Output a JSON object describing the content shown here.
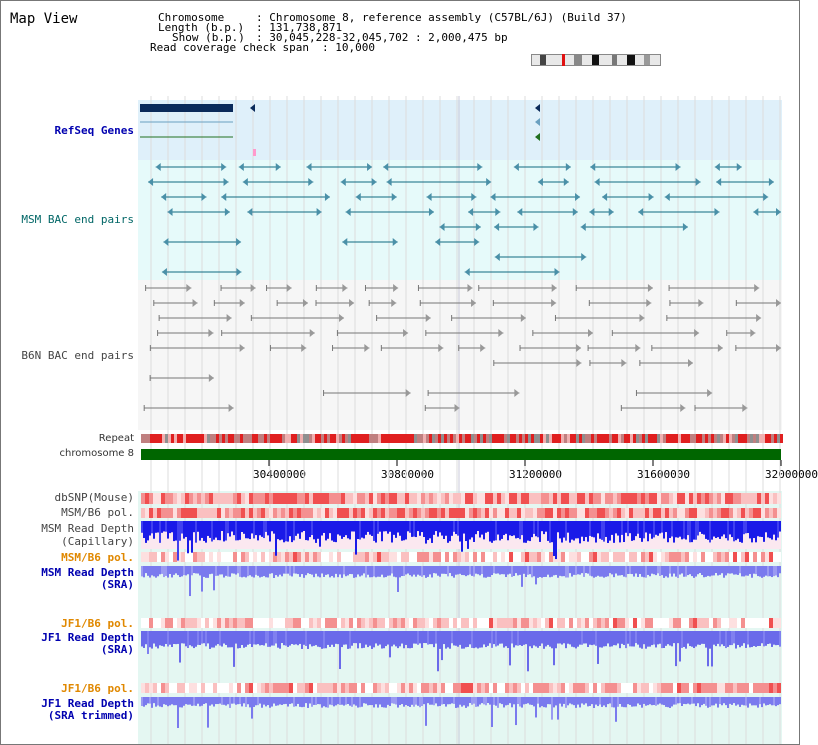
{
  "page": {
    "title": "Map View"
  },
  "info": {
    "chromosome_key": "Chromosome",
    "chromosome_val": ": Chromosome 8, reference assembly (C57BL/6J) (Build 37)",
    "length_key": "Length (b.p.)",
    "length_val": ": 131,738,871",
    "show_key": "Show (b.p.)",
    "show_val": ": 30,045,228-32,045,702 : 2,000,475 bp",
    "coverage_key": "Read coverage check span",
    "coverage_val": ": 10,000"
  },
  "tracks": {
    "refseq": "RefSeq Genes",
    "msm_bac": "MSM BAC end pairs",
    "b6n_bac": "B6N BAC end pairs",
    "repeat": "Repeat",
    "chromosome": "chromosome 8",
    "dbsnp": "dbSNP(Mouse)",
    "msm_b6_pol_1": "MSM/B6 pol.",
    "msm_read_depth_cap_1": "MSM Read Depth",
    "msm_read_depth_cap_2": "(Capillary)",
    "msm_b6_pol_2": "MSM/B6 pol.",
    "msm_read_depth_sra_1": "MSM Read Depth",
    "msm_read_depth_sra_2": "(SRA)",
    "jf1_b6_pol_1": "JF1/B6 pol.",
    "jf1_read_depth_sra_1": "JF1 Read Depth",
    "jf1_read_depth_sra_2": "(SRA)",
    "jf1_b6_pol_2": "JF1/B6 pol.",
    "jf1_read_depth_trim_1": "JF1 Read Depth",
    "jf1_read_depth_trim_2": "(SRA trimmed)"
  },
  "axis": {
    "ticks": [
      "30400000",
      "30800000",
      "31200000",
      "31600000",
      "32000000"
    ]
  },
  "colors": {
    "refseq_bg": "#dff0fa",
    "msm_bg": "#e6fafa",
    "b6n_bg": "#f4f4f4",
    "repeat_red": "#e02020",
    "chrom_green": "#006600",
    "depth_blue": "#1a1ae0",
    "depth_light": "#7777ee",
    "refseq_navy": "#0a2a5a",
    "msm_teal": "#106a80"
  }
}
